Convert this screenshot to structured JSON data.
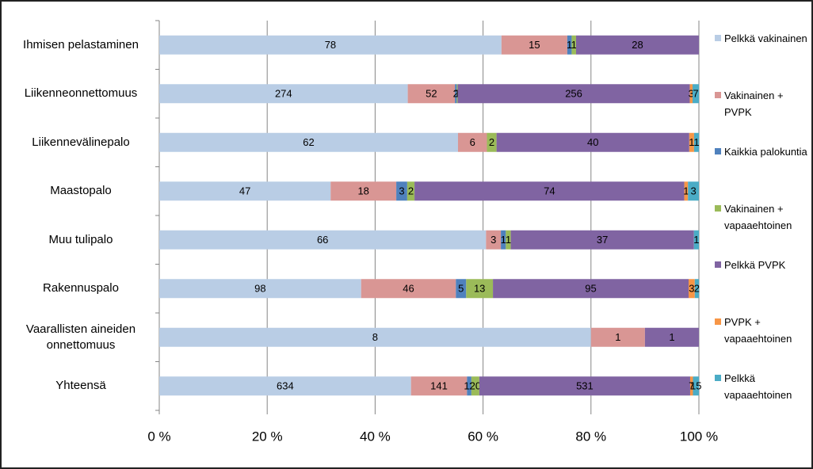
{
  "chart_data": {
    "type": "bar",
    "orientation": "horizontal",
    "stacking": "percent",
    "categories": [
      "Ihmisen pelastaminen",
      "Liikenneonnettomuus",
      "Liikennevälinepalo",
      "Maastopalo",
      "Muu tulipalo",
      "Rakennuspalo",
      "Vaarallisten aineiden onnettomuus",
      "Yhteensä"
    ],
    "series": [
      {
        "name": "Pelkkä vakinainen",
        "color": "#b9cde5",
        "values": [
          78,
          274,
          62,
          47,
          66,
          98,
          8,
          634
        ]
      },
      {
        "name": "Vakinainen + PVPK",
        "color": "#d99694",
        "values": [
          15,
          52,
          6,
          18,
          3,
          46,
          1,
          141
        ]
      },
      {
        "name": "Kaikkia palokuntia",
        "color": "#4f81bd",
        "values": [
          1,
          2,
          null,
          3,
          1,
          5,
          null,
          11
        ]
      },
      {
        "name": "Vakinainen + vapaaehtoinen",
        "color": "#9bbb59",
        "values": [
          1,
          1,
          2,
          2,
          1,
          13,
          null,
          20
        ]
      },
      {
        "name": "Pelkkä PVPK",
        "color": "#8064a2",
        "values": [
          28,
          256,
          40,
          74,
          37,
          95,
          1,
          531
        ]
      },
      {
        "name": "PVPK + vapaaehtoinen",
        "color": "#f79646",
        "values": [
          null,
          3,
          1,
          1,
          null,
          3,
          null,
          7
        ]
      },
      {
        "name": "Pelkkä vapaaehtoinen",
        "color": "#4bacc6",
        "values": [
          null,
          7,
          1,
          3,
          1,
          2,
          null,
          15
        ]
      }
    ],
    "xlim": [
      0,
      100
    ],
    "xticks": [
      {
        "value": 0,
        "label": "0 %"
      },
      {
        "value": 20,
        "label": "20 %"
      },
      {
        "value": 40,
        "label": "40 %"
      },
      {
        "value": 60,
        "label": "60 %"
      },
      {
        "value": 80,
        "label": "80 %"
      },
      {
        "value": 100,
        "label": "100 %"
      }
    ],
    "grid": true,
    "legend": "right"
  }
}
